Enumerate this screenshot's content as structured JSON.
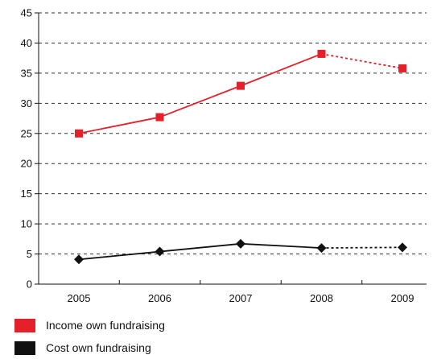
{
  "chart_data": {
    "type": "line",
    "x": [
      "2005",
      "2006",
      "2007",
      "2008",
      "2009"
    ],
    "ylim": [
      0,
      45
    ],
    "yticks": [
      "0",
      "5",
      "10",
      "15",
      "20",
      "25",
      "30",
      "35",
      "40",
      "45"
    ],
    "grid": true,
    "legend_position": "bottom-left",
    "series": [
      {
        "name": "Income own fundraising",
        "values": [
          25.0,
          27.7,
          32.9,
          38.2,
          35.8
        ],
        "color": "#e4202a",
        "marker": "square",
        "projected_from_index": 3
      },
      {
        "name": "Cost own fundraising",
        "values": [
          4.1,
          5.4,
          6.7,
          6.0,
          6.1
        ],
        "color": "#111111",
        "marker": "diamond",
        "projected_from_index": 3
      }
    ]
  }
}
